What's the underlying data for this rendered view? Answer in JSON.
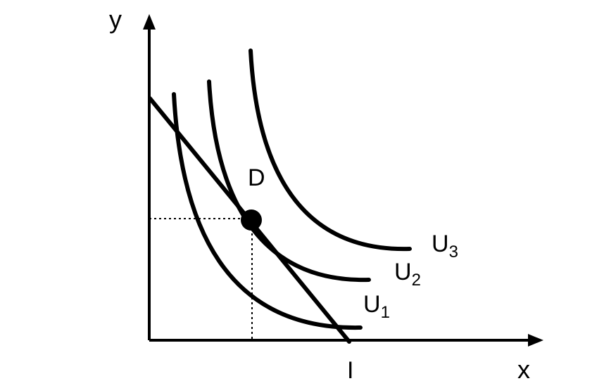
{
  "diagram": {
    "axes": {
      "y_label": "y",
      "x_label": "x"
    },
    "point": {
      "label": "D"
    },
    "budget_line": {
      "intercept_label": "I"
    },
    "curves": [
      {
        "letter": "U",
        "subscript": "1"
      },
      {
        "letter": "U",
        "subscript": "2"
      },
      {
        "letter": "U",
        "subscript": "3"
      }
    ],
    "colors": {
      "ink": "#000000",
      "background": "#ffffff"
    }
  }
}
